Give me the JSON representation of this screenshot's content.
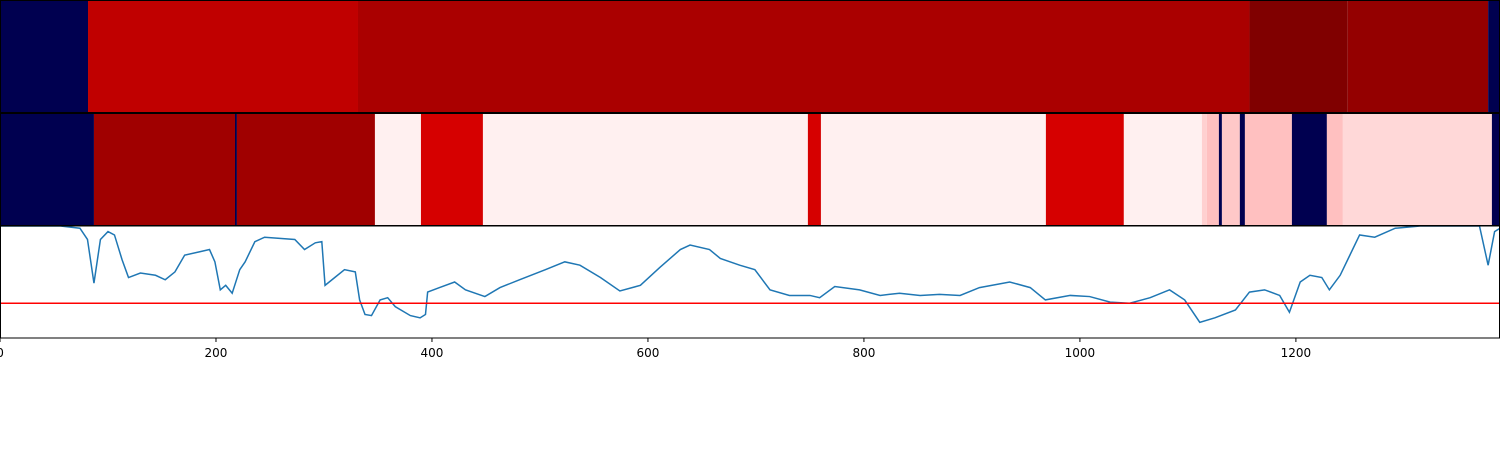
{
  "chart_data": {
    "type": "line",
    "xlim": [
      0,
      1389
    ],
    "ylim": [
      0,
      1
    ],
    "xticks": [
      0,
      200,
      400,
      600,
      800,
      1000,
      1200
    ],
    "strips": [
      {
        "segments": [
          {
            "start": 0,
            "end": 81.5,
            "color": "#000050"
          },
          {
            "start": 81.5,
            "end": 331.5,
            "color": "#c00000"
          },
          {
            "start": 331.5,
            "end": 1157,
            "color": "#aa0000"
          },
          {
            "start": 1157,
            "end": 1248,
            "color": "#800000"
          },
          {
            "start": 1248,
            "end": 1378,
            "color": "#940000"
          },
          {
            "start": 1378,
            "end": 1389,
            "color": "#000050"
          }
        ]
      },
      {
        "segments": [
          {
            "start": 0,
            "end": 87,
            "color": "#000050"
          },
          {
            "start": 87,
            "end": 217.6,
            "color": "#a00000"
          },
          {
            "start": 217.6,
            "end": 219.4,
            "color": "#000050"
          },
          {
            "start": 219.4,
            "end": 347.2,
            "color": "#a00000"
          },
          {
            "start": 347.2,
            "end": 389.8,
            "color": "#fff0f0"
          },
          {
            "start": 389.8,
            "end": 447.2,
            "color": "#d60000"
          },
          {
            "start": 447.2,
            "end": 748.1,
            "color": "#fff0f0"
          },
          {
            "start": 748.1,
            "end": 760.2,
            "color": "#d60000"
          },
          {
            "start": 760.2,
            "end": 968.5,
            "color": "#fff0f0"
          },
          {
            "start": 968.5,
            "end": 1040.7,
            "color": "#d60000"
          },
          {
            "start": 1040.7,
            "end": 1113,
            "color": "#fff0f0"
          },
          {
            "start": 1113,
            "end": 1117.6,
            "color": "#ffd0d0"
          },
          {
            "start": 1117.6,
            "end": 1128.7,
            "color": "#ffc0c0"
          },
          {
            "start": 1128.7,
            "end": 1131.5,
            "color": "#000050"
          },
          {
            "start": 1131.5,
            "end": 1148.1,
            "color": "#ffc8c8"
          },
          {
            "start": 1148.1,
            "end": 1152.8,
            "color": "#000050"
          },
          {
            "start": 1152.8,
            "end": 1196.3,
            "color": "#ffc0c0"
          },
          {
            "start": 1196.3,
            "end": 1228.7,
            "color": "#000050"
          },
          {
            "start": 1228.7,
            "end": 1243.5,
            "color": "#ffc0c0"
          },
          {
            "start": 1243.5,
            "end": 1381.5,
            "color": "#ffd8d8"
          },
          {
            "start": 1381.5,
            "end": 1389,
            "color": "#000050"
          }
        ]
      }
    ],
    "x": [
      0,
      56,
      74,
      81,
      87,
      93,
      100,
      106,
      113,
      119,
      130,
      144,
      153,
      162,
      171,
      185,
      194,
      199,
      204,
      209,
      215,
      222,
      227,
      236,
      245,
      259,
      273,
      282,
      292,
      298,
      301,
      310,
      319,
      329,
      333,
      338,
      344,
      352,
      359,
      366,
      380,
      389,
      394,
      396,
      407,
      421,
      431,
      449,
      463,
      481,
      505,
      523,
      537,
      556,
      574,
      593,
      611,
      630,
      639,
      657,
      667,
      685,
      699,
      713,
      731,
      750,
      759,
      773,
      796,
      815,
      833,
      852,
      870,
      889,
      907,
      935,
      954,
      968,
      991,
      1009,
      1028,
      1046,
      1065,
      1083,
      1097,
      1111,
      1125,
      1144,
      1157,
      1171,
      1185,
      1194,
      1204,
      1213,
      1224,
      1231,
      1241,
      1250,
      1259,
      1273,
      1292,
      1315,
      1370,
      1378,
      1384,
      1389
    ],
    "series": [
      {
        "color": "#1f77b4",
        "values": [
          1.0,
          1.0,
          0.98,
          0.88,
          0.49,
          0.88,
          0.95,
          0.92,
          0.7,
          0.54,
          0.58,
          0.56,
          0.52,
          0.59,
          0.74,
          0.77,
          0.79,
          0.68,
          0.43,
          0.47,
          0.4,
          0.61,
          0.68,
          0.86,
          0.9,
          0.89,
          0.88,
          0.79,
          0.85,
          0.86,
          0.47,
          0.54,
          0.61,
          0.59,
          0.34,
          0.21,
          0.2,
          0.34,
          0.36,
          0.28,
          0.2,
          0.18,
          0.21,
          0.41,
          0.45,
          0.5,
          0.43,
          0.37,
          0.45,
          0.52,
          0.61,
          0.68,
          0.65,
          0.54,
          0.42,
          0.47,
          0.63,
          0.79,
          0.83,
          0.79,
          0.71,
          0.65,
          0.61,
          0.43,
          0.38,
          0.38,
          0.36,
          0.46,
          0.43,
          0.38,
          0.4,
          0.38,
          0.39,
          0.38,
          0.45,
          0.5,
          0.45,
          0.34,
          0.38,
          0.37,
          0.32,
          0.31,
          0.36,
          0.43,
          0.34,
          0.14,
          0.18,
          0.25,
          0.41,
          0.43,
          0.38,
          0.23,
          0.5,
          0.56,
          0.54,
          0.43,
          0.56,
          0.74,
          0.92,
          0.9,
          0.98,
          1.0,
          1.0,
          0.65,
          0.95,
          0.98
        ]
      }
    ],
    "hline": {
      "value": 0.31,
      "color": "#ff0000"
    }
  }
}
